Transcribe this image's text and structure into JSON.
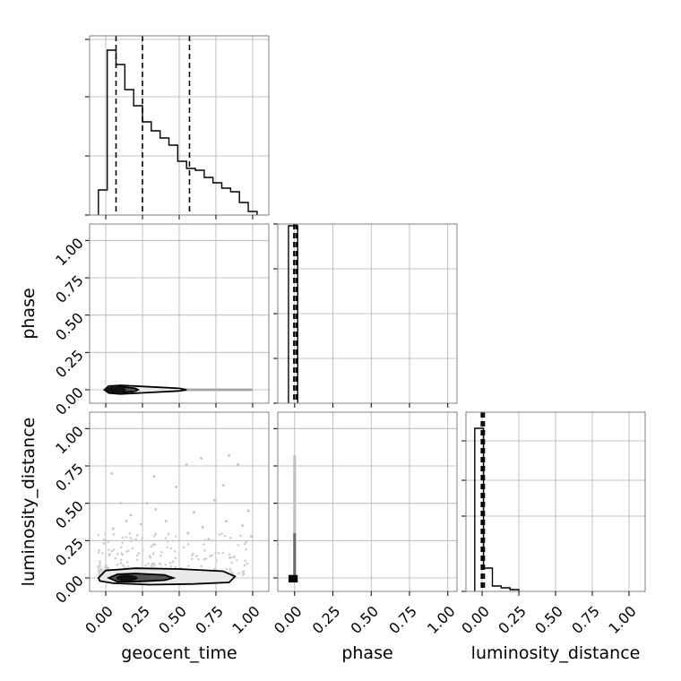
{
  "chart_data": {
    "type": "corner",
    "parameters": [
      "geocent_time",
      "phase",
      "luminosity_distance"
    ],
    "tick_values": [
      0.0,
      0.25,
      0.5,
      0.75,
      1.0
    ],
    "tick_labels": [
      "0.00",
      "0.25",
      "0.50",
      "0.75",
      "1.00"
    ],
    "grid": true,
    "panels": [
      {
        "type": "histogram",
        "name": "geocent_time-hist",
        "x_param": "geocent_time",
        "xlim": [
          -0.11,
          1.11
        ],
        "ylim": [
          0,
          1.0
        ],
        "steps": [
          [
            -0.05,
            0.14
          ],
          [
            0.01,
            0.92
          ],
          [
            0.07,
            0.84
          ],
          [
            0.13,
            0.7
          ],
          [
            0.19,
            0.61
          ],
          [
            0.25,
            0.52
          ],
          [
            0.31,
            0.47
          ],
          [
            0.37,
            0.43
          ],
          [
            0.43,
            0.39
          ],
          [
            0.49,
            0.3
          ],
          [
            0.55,
            0.26
          ],
          [
            0.61,
            0.25
          ],
          [
            0.67,
            0.21
          ],
          [
            0.73,
            0.18
          ],
          [
            0.79,
            0.15
          ],
          [
            0.85,
            0.13
          ],
          [
            0.91,
            0.07
          ],
          [
            0.97,
            0.02
          ],
          [
            1.03,
            0.0
          ]
        ],
        "quantiles": [
          0.07,
          0.25,
          0.57
        ],
        "y_ticks": [
          0.0,
          0.33,
          0.66,
          0.98
        ]
      },
      {
        "type": "histogram",
        "name": "phase-hist",
        "x_param": "phase",
        "xlim": [
          -0.11,
          1.06
        ],
        "ylim": [
          0,
          1.0
        ],
        "steps": [
          [
            -0.04,
            0.99
          ],
          [
            0.02,
            0.0
          ]
        ],
        "quantiles": [
          -0.005,
          0.0,
          0.012
        ],
        "y_ticks": [
          0.0,
          0.25,
          0.5,
          0.75,
          1.0
        ]
      },
      {
        "type": "histogram",
        "name": "luminosity_distance-hist",
        "x_param": "luminosity_distance",
        "xlim": [
          -0.11,
          1.11
        ],
        "ylim": [
          0,
          1.0
        ],
        "steps": [
          [
            -0.05,
            0.91
          ],
          [
            0.01,
            0.13
          ],
          [
            0.07,
            0.03
          ],
          [
            0.13,
            0.02
          ],
          [
            0.19,
            0.01
          ],
          [
            0.25,
            0.0
          ]
        ],
        "quantiles": [
          -0.005,
          0.005,
          0.015
        ],
        "y_ticks": [
          0.0,
          0.42,
          0.62,
          0.84
        ]
      },
      {
        "type": "density",
        "name": "phase-vs-geocent_time",
        "x_param": "geocent_time",
        "y_param": "phase",
        "xlim": [
          -0.11,
          1.11
        ],
        "ylim": [
          -0.09,
          1.11
        ],
        "outer_contour": [
          [
            -0.01,
            0.0
          ],
          [
            0.02,
            0.025
          ],
          [
            0.1,
            0.03
          ],
          [
            0.3,
            0.02
          ],
          [
            0.5,
            0.01
          ],
          [
            0.55,
            0.0
          ],
          [
            0.5,
            -0.008
          ],
          [
            0.3,
            -0.018
          ],
          [
            0.1,
            -0.028
          ],
          [
            0.02,
            -0.022
          ]
        ],
        "inner_contour": [
          [
            0.0,
            0.0
          ],
          [
            0.04,
            0.017
          ],
          [
            0.12,
            0.019
          ],
          [
            0.2,
            0.01
          ],
          [
            0.22,
            0.0
          ],
          [
            0.2,
            -0.01
          ],
          [
            0.12,
            -0.017
          ],
          [
            0.04,
            -0.015
          ]
        ],
        "tail_to": 1.0
      },
      {
        "type": "density",
        "name": "luminosity_distance-vs-geocent_time",
        "x_param": "geocent_time",
        "y_param": "luminosity_distance",
        "xlim": [
          -0.11,
          1.11
        ],
        "ylim": [
          -0.09,
          1.11
        ],
        "outer_contour": [
          [
            -0.05,
            0.0
          ],
          [
            0.0,
            0.05
          ],
          [
            0.2,
            0.065
          ],
          [
            0.5,
            0.06
          ],
          [
            0.8,
            0.045
          ],
          [
            0.88,
            0.01
          ],
          [
            0.84,
            -0.03
          ],
          [
            0.6,
            -0.04
          ],
          [
            0.3,
            -0.045
          ],
          [
            0.05,
            -0.035
          ],
          [
            -0.04,
            -0.02
          ]
        ],
        "inner_contour": [
          [
            0.02,
            0.0
          ],
          [
            0.08,
            0.025
          ],
          [
            0.2,
            0.03
          ],
          [
            0.4,
            0.02
          ],
          [
            0.46,
            0.0
          ],
          [
            0.4,
            -0.015
          ],
          [
            0.2,
            -0.025
          ],
          [
            0.08,
            -0.025
          ]
        ],
        "outliers": [
          [
            0.04,
            0.7
          ],
          [
            0.55,
            0.76
          ],
          [
            0.65,
            0.8
          ],
          [
            0.84,
            0.82
          ],
          [
            0.9,
            0.76
          ],
          [
            0.28,
            0.5
          ],
          [
            0.34,
            0.46
          ],
          [
            0.33,
            0.68
          ],
          [
            0.1,
            0.5
          ],
          [
            0.17,
            0.42
          ],
          [
            0.6,
            0.44
          ],
          [
            0.74,
            0.52
          ],
          [
            0.8,
            0.62
          ],
          [
            0.48,
            0.61
          ],
          [
            0.93,
            0.35
          ],
          [
            0.99,
            0.28
          ],
          [
            0.14,
            0.38
          ],
          [
            0.41,
            0.38
          ],
          [
            0.66,
            0.34
          ],
          [
            0.05,
            0.33
          ],
          [
            0.24,
            0.36
          ],
          [
            0.56,
            0.3
          ],
          [
            0.82,
            0.38
          ],
          [
            0.7,
            0.26
          ],
          [
            0.97,
            0.45
          ]
        ]
      },
      {
        "type": "density",
        "name": "luminosity_distance-vs-phase",
        "x_param": "phase",
        "y_param": "luminosity_distance",
        "xlim": [
          -0.11,
          1.06
        ],
        "ylim": [
          -0.09,
          1.11
        ],
        "column_x": 0.0,
        "column_top": 0.82,
        "square": [
          -0.04,
          -0.03,
          0.02,
          0.02
        ]
      }
    ]
  }
}
